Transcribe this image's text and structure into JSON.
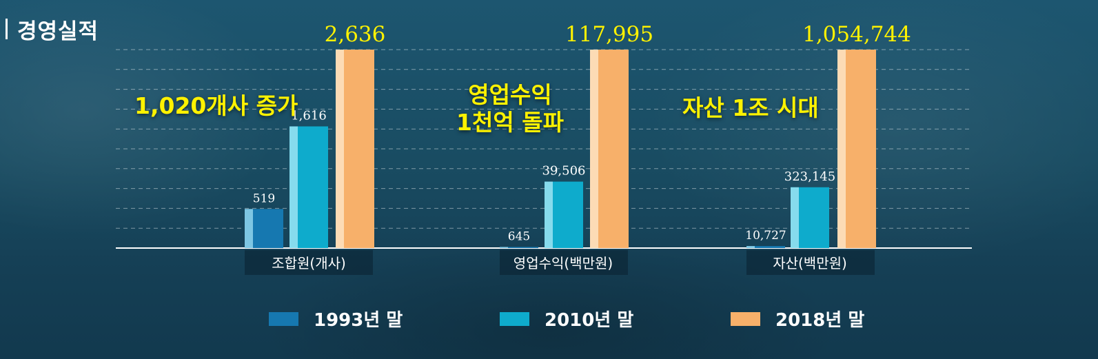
{
  "header": {
    "title": "경영실적"
  },
  "callouts": [
    {
      "text": "1,020개사 증가"
    },
    {
      "text_line1": "영업수익",
      "text_line2": "1천억 돌파"
    },
    {
      "text": "자산 1조 시대"
    }
  ],
  "colors": {
    "series_1993": "#1678b0",
    "series_2010": "#0eabcc",
    "series_2018": "#f7b06a",
    "callout": "#fff200",
    "label_1993_2010": "#ffffff",
    "label_2018": "#fff200"
  },
  "chart_data": {
    "type": "bar",
    "categories": [
      "조합원(개사)",
      "영업수익(백만원)",
      "자산(백만원)"
    ],
    "series": [
      {
        "name": "1993년 말",
        "values": [
          519,
          645,
          10727
        ],
        "labels": [
          "519",
          "645",
          "10,727"
        ]
      },
      {
        "name": "2010년 말",
        "values": [
          1616,
          39506,
          323145
        ],
        "labels": [
          "1,616",
          "39,506",
          "323,145"
        ]
      },
      {
        "name": "2018년 말",
        "values": [
          2636,
          117995,
          1054744
        ],
        "labels": [
          "2,636",
          "117,995",
          "1,054,744"
        ]
      }
    ],
    "scale": "independent-per-category",
    "grid": true,
    "legend": "bottom"
  }
}
